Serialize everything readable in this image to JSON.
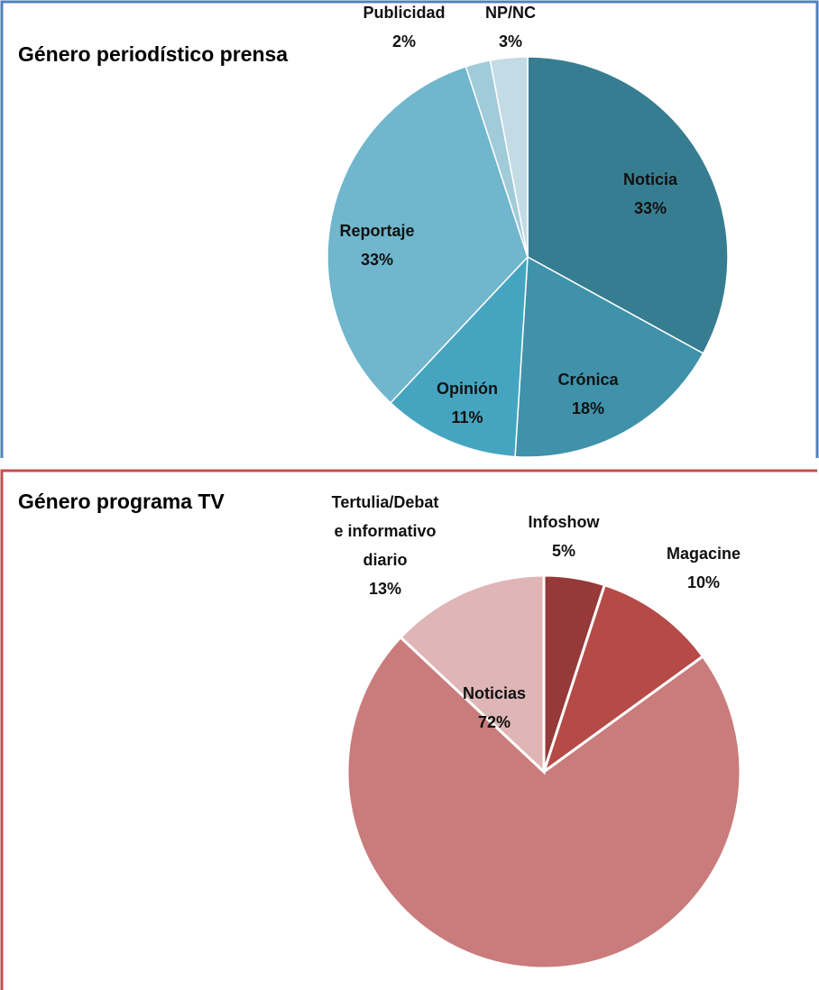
{
  "chart_data": [
    {
      "type": "pie",
      "title": "Género periodístico prensa",
      "categories": [
        "Noticia",
        "Crónica",
        "Opinión",
        "Reportaje",
        "Publicidad",
        "NP/NC"
      ],
      "values": [
        33,
        18,
        11,
        33,
        2,
        3
      ],
      "value_labels": [
        "33%",
        "18%",
        "11%",
        "33%",
        "2%",
        "3%"
      ],
      "colors": [
        "#377d92",
        "#3f92aa",
        "#45a5c0",
        "#70b6cc",
        "#a1cbd9",
        "#c3dbe4"
      ]
    },
    {
      "type": "pie",
      "title": "Género programa TV",
      "categories": [
        "Infoshow",
        "Magacine",
        "Noticias",
        "Tertulia/Debate informativo diario"
      ],
      "values": [
        5,
        10,
        72,
        13
      ],
      "value_labels": [
        "5%",
        "10%",
        "72%",
        "13%"
      ],
      "colors": [
        "#953a38",
        "#b54a47",
        "#c97c7b",
        "#dfb5b5"
      ]
    }
  ]
}
